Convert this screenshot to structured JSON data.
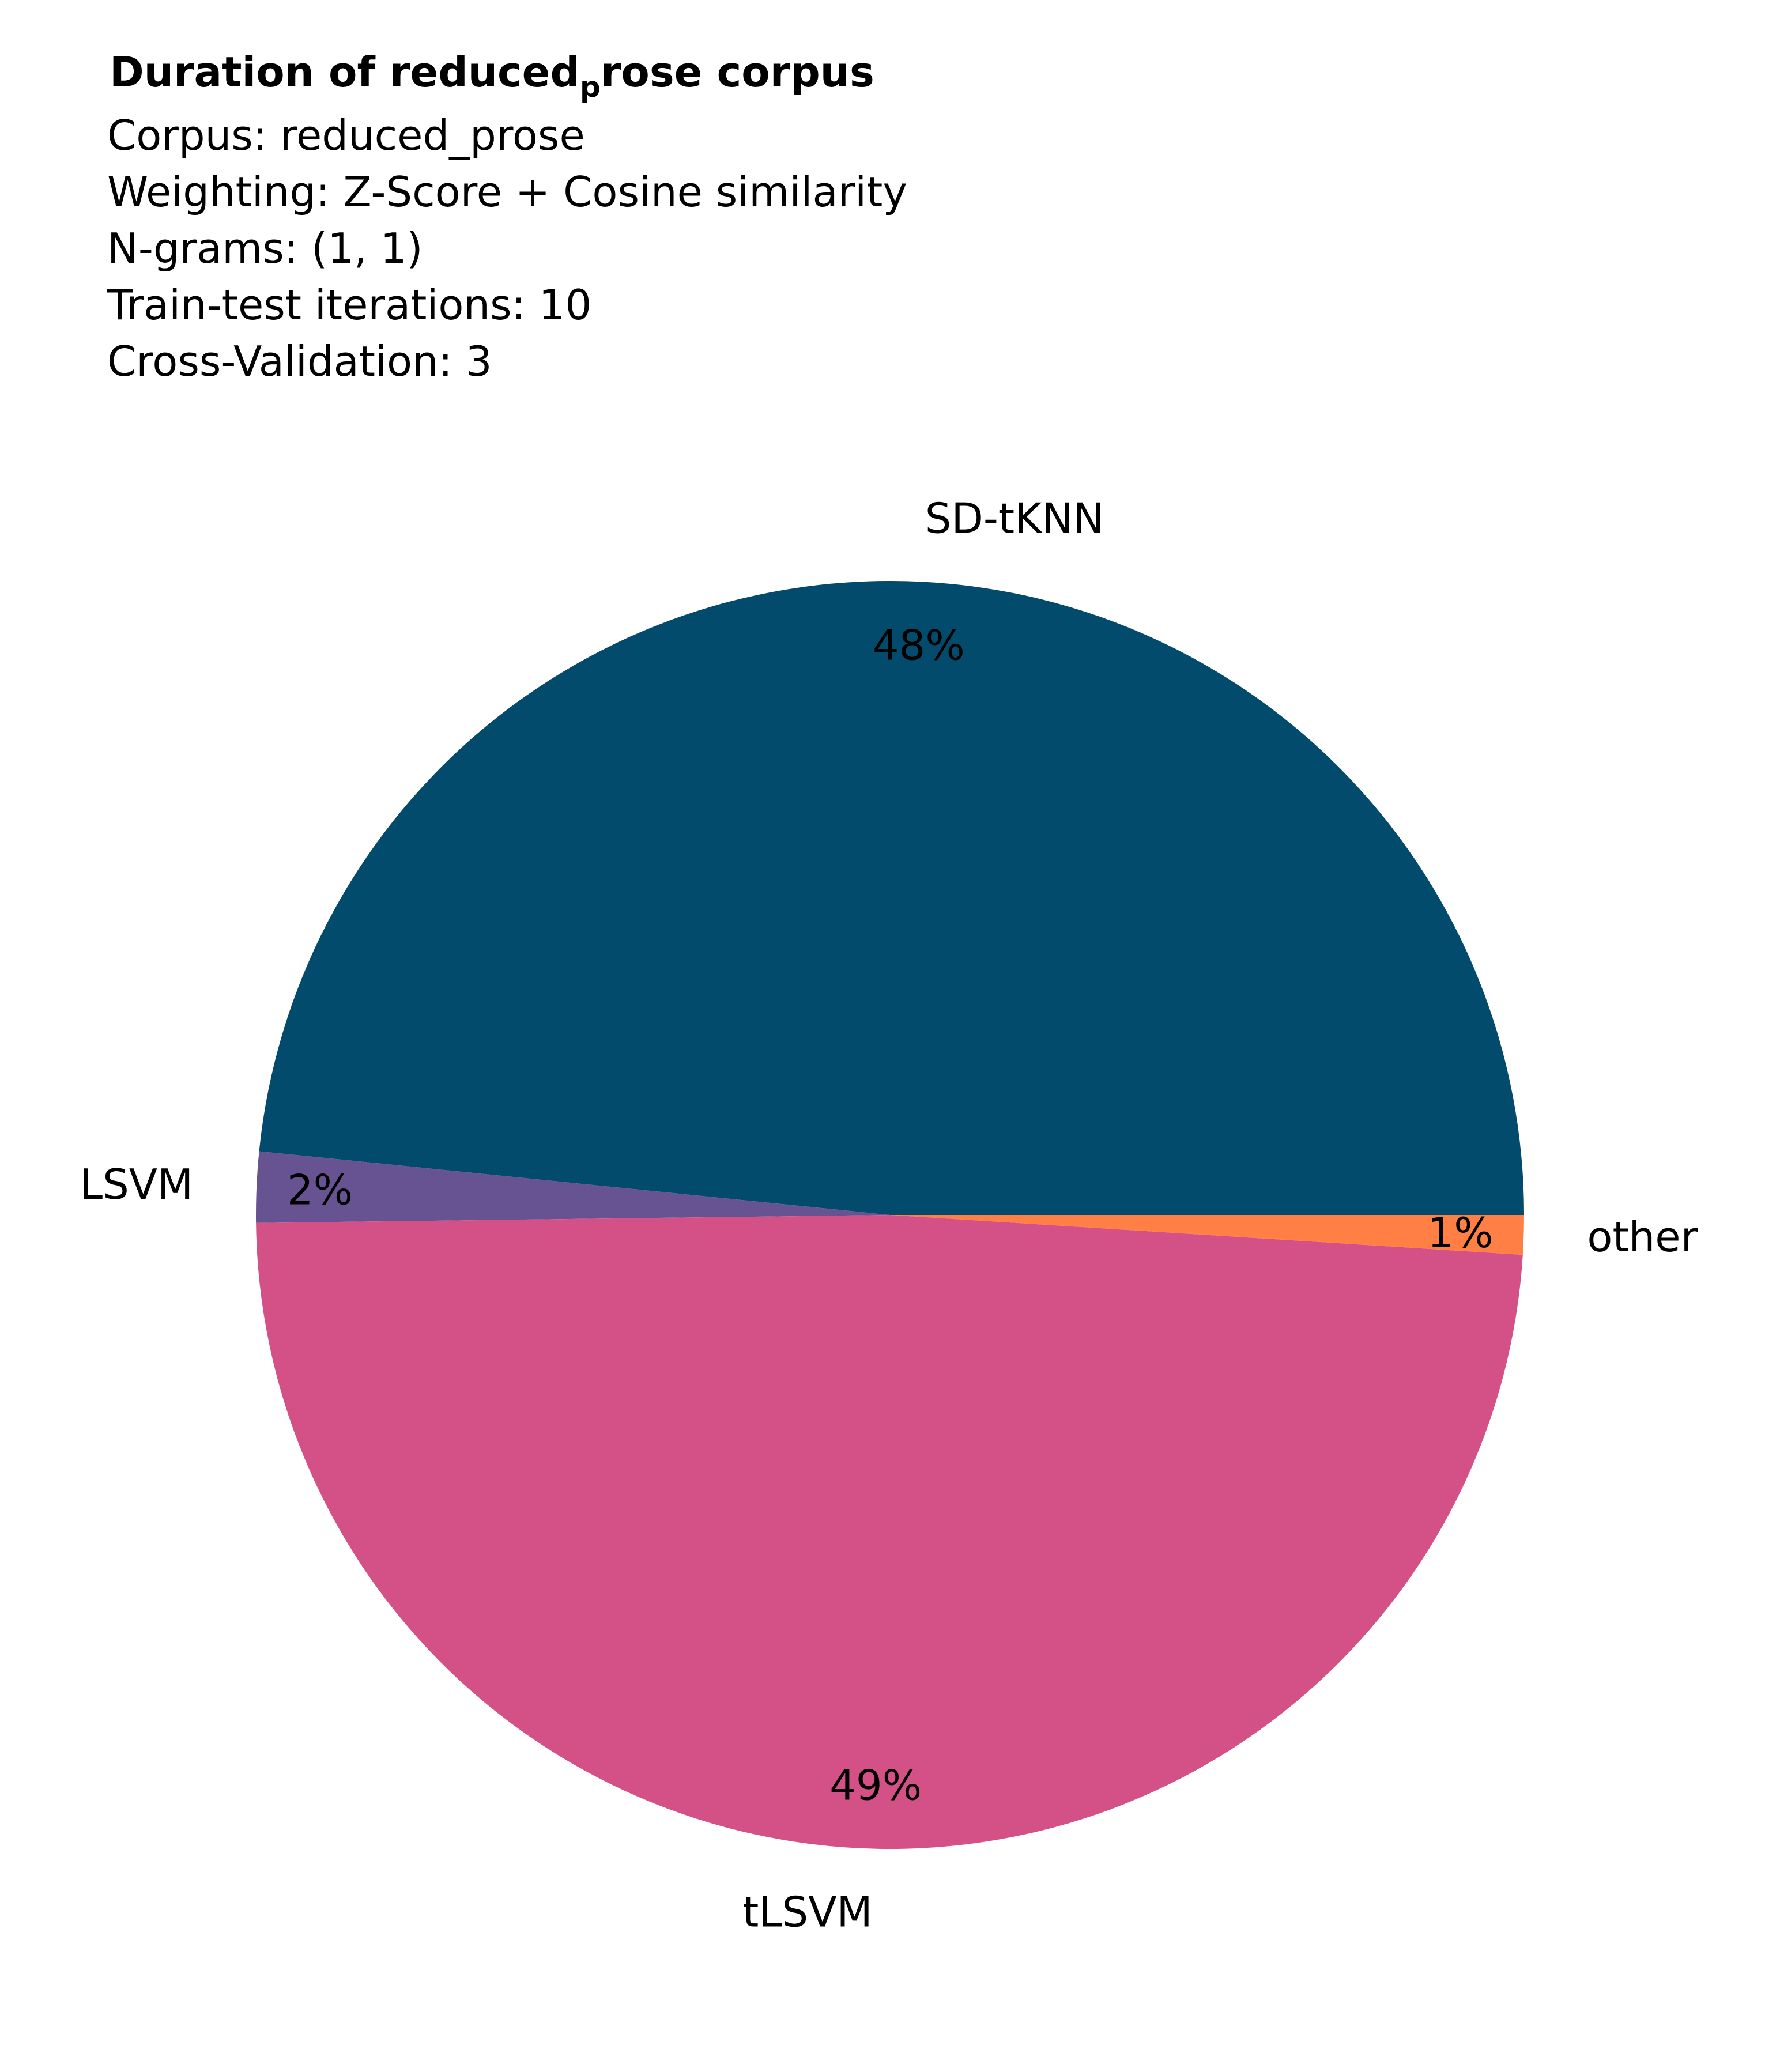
{
  "chart_data": {
    "type": "pie",
    "title": {
      "main": "Duration of reduced",
      "subscript": "p",
      "rest": "rose corpus"
    },
    "info_lines": [
      "Corpus: reduced_prose",
      "Weighting: Z-Score + Cosine similarity",
      "N-grams: (1, 1)",
      "Train-test iterations: 10",
      "Cross-Validation: 3"
    ],
    "start_angle_deg": 0,
    "direction": "counterclockwise",
    "slices": [
      {
        "label": "SD-tKNN",
        "value": 48.4,
        "pct_label": "48%",
        "color": "#024b6c"
      },
      {
        "label": "LSVM",
        "value": 1.8,
        "pct_label": "2%",
        "color": "#675391"
      },
      {
        "label": "tLSVM",
        "value": 48.8,
        "pct_label": "49%",
        "color": "#d45187"
      },
      {
        "label": "other",
        "value": 1.0,
        "pct_label": "1%",
        "color": "#ff7f45"
      }
    ]
  }
}
